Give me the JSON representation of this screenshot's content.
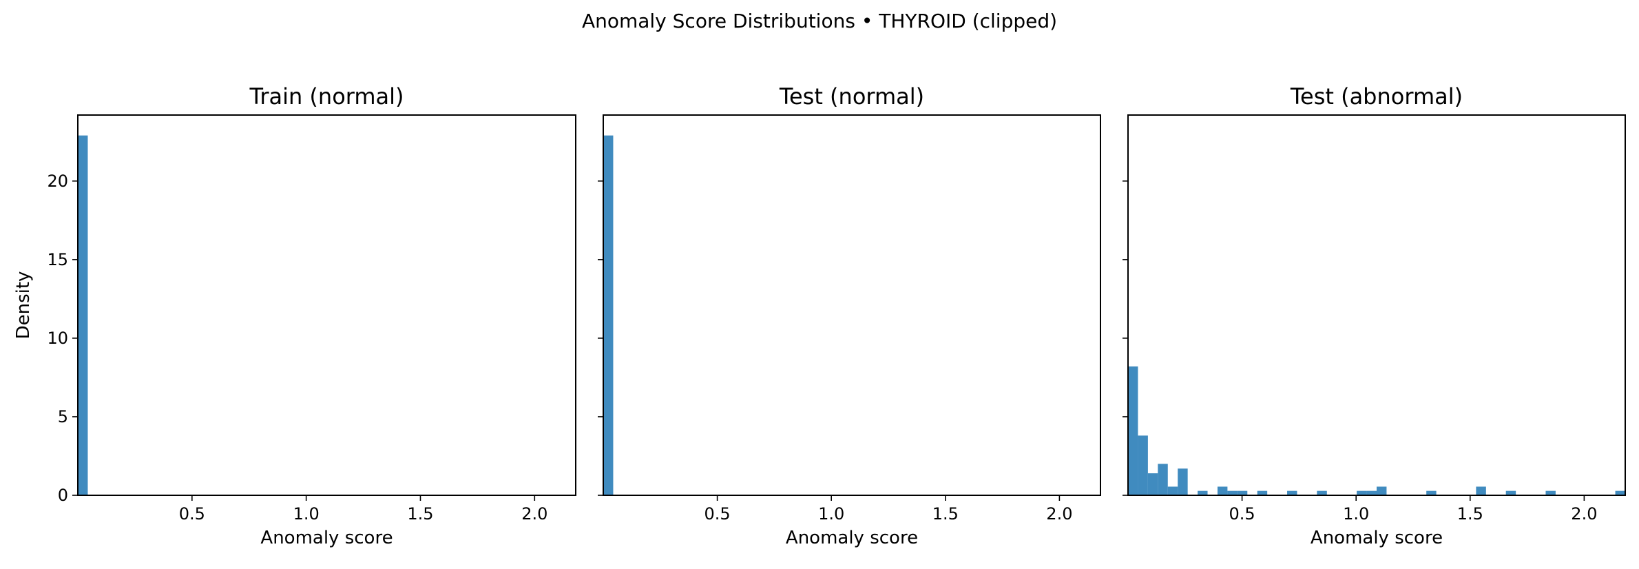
{
  "suptitle": "Anomaly Score Distributions • THYROID (clipped)",
  "chart_data": [
    {
      "type": "bar",
      "title": "Train (normal)",
      "xlabel": "Anomaly score",
      "ylabel": "Density",
      "xlim": [
        0.0,
        2.18
      ],
      "ylim": [
        0,
        24.2
      ],
      "x_ticks": [
        0.5,
        1.0,
        1.5,
        2.0
      ],
      "x_tick_labels": [
        "0.5",
        "1.0",
        "1.5",
        "2.0"
      ],
      "y_ticks": [
        0,
        5,
        10,
        15,
        20
      ],
      "y_tick_labels": [
        "0",
        "5",
        "10",
        "15",
        "20"
      ],
      "show_y_tick_labels": true,
      "bin_width": 0.0436,
      "bins": [
        {
          "x0": 0.0,
          "x1": 0.0436,
          "density": 22.9
        }
      ]
    },
    {
      "type": "bar",
      "title": "Test (normal)",
      "xlabel": "Anomaly score",
      "ylabel": "",
      "xlim": [
        0.0,
        2.18
      ],
      "ylim": [
        0,
        24.2
      ],
      "x_ticks": [
        0.5,
        1.0,
        1.5,
        2.0
      ],
      "x_tick_labels": [
        "0.5",
        "1.0",
        "1.5",
        "2.0"
      ],
      "y_ticks": [
        0,
        5,
        10,
        15,
        20
      ],
      "y_tick_labels": [
        "0",
        "5",
        "10",
        "15",
        "20"
      ],
      "show_y_tick_labels": false,
      "bin_width": 0.0436,
      "bins": [
        {
          "x0": 0.0,
          "x1": 0.0436,
          "density": 22.9
        }
      ]
    },
    {
      "type": "bar",
      "title": "Test (abnormal)",
      "xlabel": "Anomaly score",
      "ylabel": "",
      "xlim": [
        0.0,
        2.18
      ],
      "ylim": [
        0,
        24.2
      ],
      "x_ticks": [
        0.5,
        1.0,
        1.5,
        2.0
      ],
      "x_tick_labels": [
        "0.5",
        "1.0",
        "1.5",
        "2.0"
      ],
      "y_ticks": [
        0,
        5,
        10,
        15,
        20
      ],
      "y_tick_labels": [
        "0",
        "5",
        "10",
        "15",
        "20"
      ],
      "show_y_tick_labels": false,
      "bin_width": 0.0436,
      "bins": [
        {
          "x0": 0.0,
          "x1": 0.0436,
          "density": 8.2
        },
        {
          "x0": 0.0436,
          "x1": 0.0872,
          "density": 3.8
        },
        {
          "x0": 0.0872,
          "x1": 0.1308,
          "density": 1.4
        },
        {
          "x0": 0.1308,
          "x1": 0.1744,
          "density": 2.0
        },
        {
          "x0": 0.1744,
          "x1": 0.218,
          "density": 0.55
        },
        {
          "x0": 0.218,
          "x1": 0.2616,
          "density": 1.7
        },
        {
          "x0": 0.3052,
          "x1": 0.3488,
          "density": 0.28
        },
        {
          "x0": 0.3924,
          "x1": 0.436,
          "density": 0.55
        },
        {
          "x0": 0.436,
          "x1": 0.4796,
          "density": 0.28
        },
        {
          "x0": 0.4796,
          "x1": 0.5232,
          "density": 0.28
        },
        {
          "x0": 0.5668,
          "x1": 0.6104,
          "density": 0.28
        },
        {
          "x0": 0.6976,
          "x1": 0.7412,
          "density": 0.28
        },
        {
          "x0": 0.8284,
          "x1": 0.872,
          "density": 0.28
        },
        {
          "x0": 1.0028,
          "x1": 1.0464,
          "density": 0.28
        },
        {
          "x0": 1.0464,
          "x1": 1.09,
          "density": 0.28
        },
        {
          "x0": 1.09,
          "x1": 1.1336,
          "density": 0.55
        },
        {
          "x0": 1.308,
          "x1": 1.3516,
          "density": 0.28
        },
        {
          "x0": 1.526,
          "x1": 1.5696,
          "density": 0.55
        },
        {
          "x0": 1.6568,
          "x1": 1.7004,
          "density": 0.28
        },
        {
          "x0": 1.8312,
          "x1": 1.8748,
          "density": 0.28
        },
        {
          "x0": 2.1364,
          "x1": 2.18,
          "density": 0.28
        }
      ]
    }
  ],
  "colors": {
    "bar": "#1f77b4",
    "axes": "#000000",
    "background": "#ffffff"
  }
}
